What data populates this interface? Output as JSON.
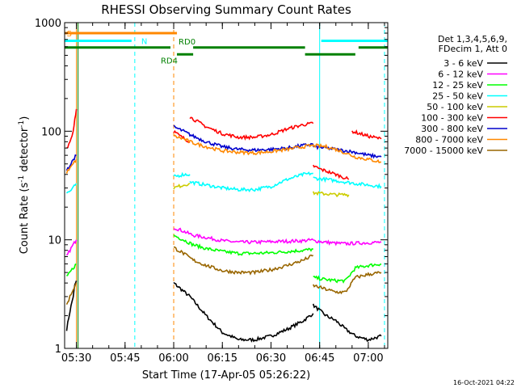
{
  "chart_data": {
    "type": "line",
    "title": "RHESSI Observing Summary Count Rates",
    "xlabel": "Start Time (17-Apr-05 05:26:22)",
    "ylabel_main": "Count Rate (s",
    "ylabel_sup1": "-1",
    "ylabel_mid": " detector",
    "ylabel_sup2": "-1",
    "ylabel_end": ")",
    "yscale": "log",
    "xlim": [
      "05:26:22",
      "07:06:00"
    ],
    "ylim": [
      1,
      1000
    ],
    "x_ticks": [
      "05:30",
      "05:45",
      "06:00",
      "06:15",
      "06:30",
      "06:45",
      "07:00"
    ],
    "y_ticks": [
      "1",
      "10",
      "100",
      "1000"
    ],
    "legend_header": [
      "Det 1,3,4,5,6,9,",
      "FDecim 1, Att 0"
    ],
    "series": [
      {
        "name": "3 - 6 keV",
        "color": "#000000",
        "segments": [
          {
            "x": [
              "05:27:00",
              "05:28:00",
              "05:29:00",
              "05:29:30",
              "05:30:00"
            ],
            "y": [
              1.5,
              2.2,
              3.0,
              3.8,
              4.2
            ]
          },
          {
            "x": [
              "06:00:00",
              "06:05:00",
              "06:10:00",
              "06:15:00",
              "06:20:00",
              "06:25:00",
              "06:30:00",
              "06:35:00",
              "06:40:00",
              "06:43:00"
            ],
            "y": [
              4.0,
              3.0,
              2.0,
              1.4,
              1.2,
              1.2,
              1.3,
              1.5,
              1.8,
              2.1
            ]
          },
          {
            "x": [
              "06:43:00",
              "06:47:00",
              "06:50:00",
              "06:53:00",
              "06:56:00",
              "07:00:00",
              "07:04:00"
            ],
            "y": [
              2.5,
              2.0,
              1.8,
              1.5,
              1.3,
              1.2,
              1.3
            ]
          }
        ]
      },
      {
        "name": "6 - 12 keV",
        "color": "#ff00ff",
        "segments": [
          {
            "x": [
              "05:27:00",
              "05:28:00",
              "05:29:00",
              "05:30:00"
            ],
            "y": [
              7.0,
              8.0,
              9.0,
              10.0
            ]
          },
          {
            "x": [
              "06:00:00",
              "06:03:00",
              "06:06:00",
              "06:10:00",
              "06:15:00",
              "06:20:00",
              "06:25:00",
              "06:30:00",
              "06:35:00",
              "06:40:00",
              "06:43:00"
            ],
            "y": [
              13.0,
              12.0,
              11.0,
              10.5,
              9.8,
              9.5,
              9.5,
              9.6,
              9.7,
              9.8,
              10.0
            ]
          },
          {
            "x": [
              "06:43:00",
              "06:47:00",
              "06:50:00",
              "06:53:00",
              "06:56:00",
              "07:00:00",
              "07:04:00"
            ],
            "y": [
              9.8,
              9.5,
              9.3,
              9.2,
              9.3,
              9.4,
              9.5
            ]
          }
        ]
      },
      {
        "name": "12 - 25 keV",
        "color": "#00ff00",
        "segments": [
          {
            "x": [
              "05:27:00",
              "05:28:00",
              "05:29:00",
              "05:30:00"
            ],
            "y": [
              4.5,
              5.0,
              5.5,
              6.0
            ]
          },
          {
            "x": [
              "06:00:00",
              "06:03:00",
              "06:06:00",
              "06:10:00",
              "06:15:00",
              "06:20:00",
              "06:25:00",
              "06:30:00",
              "06:35:00",
              "06:40:00",
              "06:43:00"
            ],
            "y": [
              11.0,
              10.0,
              9.0,
              8.3,
              7.8,
              7.5,
              7.5,
              7.6,
              7.8,
              8.0,
              8.2
            ]
          },
          {
            "x": [
              "06:43:00",
              "06:47:00",
              "06:50:00",
              "06:53:00",
              "06:56:00",
              "07:00:00",
              "07:04:00"
            ],
            "y": [
              4.5,
              4.3,
              4.2,
              4.2,
              5.5,
              5.8,
              6.0
            ]
          }
        ]
      },
      {
        "name": "25 - 50 keV",
        "color": "#00ffff",
        "segments": [
          {
            "x": [
              "05:27:00",
              "05:28:00",
              "05:29:00",
              "05:30:00"
            ],
            "y": [
              27.0,
              28.0,
              30.0,
              33.0
            ]
          },
          {
            "x": [
              "06:00:00",
              "06:03:00",
              "06:05:00"
            ],
            "y": [
              38.0,
              40.0,
              40.0
            ]
          },
          {
            "x": [
              "06:05:00",
              "06:10:00",
              "06:15:00",
              "06:20:00",
              "06:25:00",
              "06:30:00",
              "06:35:00",
              "06:40:00",
              "06:43:00"
            ],
            "y": [
              34.0,
              32.0,
              30.0,
              29.0,
              29.0,
              31.0,
              36.0,
              40.0,
              41.0
            ]
          },
          {
            "x": [
              "06:43:00",
              "06:47:00",
              "06:50:00",
              "06:53:00",
              "06:56:00",
              "07:00:00",
              "07:04:00"
            ],
            "y": [
              37.0,
              36.0,
              35.0,
              34.0,
              33.0,
              32.0,
              31.0
            ]
          }
        ]
      },
      {
        "name": "50 - 100 keV",
        "color": "#cccc00",
        "segments": [
          {
            "x": [
              "06:00:00",
              "06:03:00",
              "06:05:00"
            ],
            "y": [
              30.0,
              32.0,
              33.0
            ]
          },
          {
            "x": [
              "06:43:00",
              "06:47:00",
              "06:50:00",
              "06:54:00"
            ],
            "y": [
              27.0,
              26.5,
              26.0,
              26.0
            ]
          }
        ]
      },
      {
        "name": "100 - 300 keV",
        "color": "#ff0000",
        "segments": [
          {
            "x": [
              "05:27:00",
              "05:28:00",
              "05:29:00",
              "05:29:30",
              "05:30:00"
            ],
            "y": [
              70.0,
              80.0,
              100.0,
              130.0,
              160.0
            ]
          },
          {
            "x": [
              "06:00:00",
              "06:02:00",
              "06:05:00"
            ],
            "y": [
              100.0,
              90.0,
              80.0
            ]
          },
          {
            "x": [
              "06:05:00",
              "06:10:00",
              "06:15:00",
              "06:20:00",
              "06:25:00",
              "06:30:00",
              "06:35:00",
              "06:40:00",
              "06:43:00"
            ],
            "y": [
              135.0,
              110.0,
              95.0,
              88.0,
              88.0,
              93.0,
              105.0,
              115.0,
              118.0
            ]
          },
          {
            "x": [
              "06:43:00",
              "06:45:00",
              "06:50:00",
              "06:54:00"
            ],
            "y": [
              48.0,
              45.0,
              40.0,
              36.0
            ]
          },
          {
            "x": [
              "06:55:00",
              "07:00:00",
              "07:04:00"
            ],
            "y": [
              100.0,
              90.0,
              85.0
            ]
          }
        ]
      },
      {
        "name": "300 - 800 keV",
        "color": "#0000cc",
        "segments": [
          {
            "x": [
              "05:27:00",
              "05:28:00",
              "05:29:00",
              "05:30:00"
            ],
            "y": [
              45.0,
              48.0,
              55.0,
              60.0
            ]
          },
          {
            "x": [
              "06:00:00",
              "06:03:00",
              "06:06:00",
              "06:10:00",
              "06:15:00",
              "06:20:00",
              "06:25:00",
              "06:30:00",
              "06:35:00",
              "06:40:00",
              "06:43:00"
            ],
            "y": [
              110.0,
              100.0,
              90.0,
              80.0,
              72.0,
              68.0,
              67.0,
              68.0,
              70.0,
              74.0,
              76.0
            ]
          },
          {
            "x": [
              "06:43:00",
              "06:47:00",
              "06:50:00",
              "06:53:00",
              "06:56:00",
              "07:00:00",
              "07:04:00"
            ],
            "y": [
              72.0,
              70.0,
              68.0,
              66.0,
              64.0,
              60.0,
              58.0
            ]
          }
        ]
      },
      {
        "name": "800 - 7000 keV",
        "color": "#ff8800",
        "segments": [
          {
            "x": [
              "05:27:00",
              "05:28:00",
              "05:29:00",
              "05:30:00"
            ],
            "y": [
              42.0,
              45.0,
              50.0,
              55.0
            ]
          },
          {
            "x": [
              "06:00:00",
              "06:03:00",
              "06:06:00",
              "06:10:00",
              "06:15:00",
              "06:20:00",
              "06:25:00",
              "06:30:00",
              "06:35:00",
              "06:40:00",
              "06:43:00"
            ],
            "y": [
              90.0,
              85.0,
              78.0,
              72.0,
              66.0,
              64.0,
              63.0,
              65.0,
              68.0,
              72.0,
              74.0
            ]
          },
          {
            "x": [
              "06:43:00",
              "06:47:00",
              "06:50:00",
              "06:53:00",
              "06:56:00",
              "07:00:00",
              "07:04:00"
            ],
            "y": [
              74.0,
              72.0,
              68.0,
              63.0,
              58.0,
              55.0,
              52.0
            ]
          }
        ]
      },
      {
        "name": "7000 - 15000 keV",
        "color": "#996600",
        "segments": [
          {
            "x": [
              "05:27:00",
              "05:28:00",
              "05:29:00",
              "05:30:00"
            ],
            "y": [
              2.5,
              3.0,
              3.5,
              4.0
            ]
          },
          {
            "x": [
              "06:00:00",
              "06:03:00",
              "06:06:00",
              "06:10:00",
              "06:15:00",
              "06:20:00",
              "06:25:00",
              "06:30:00",
              "06:35:00",
              "06:40:00",
              "06:43:00"
            ],
            "y": [
              8.5,
              7.5,
              6.5,
              5.8,
              5.2,
              5.0,
              5.0,
              5.3,
              5.8,
              6.5,
              7.2
            ]
          },
          {
            "x": [
              "06:43:00",
              "06:47:00",
              "06:50:00",
              "06:53:00",
              "06:56:00",
              "07:00:00",
              "07:04:00"
            ],
            "y": [
              3.8,
              3.5,
              3.3,
              3.3,
              4.5,
              4.8,
              5.0
            ]
          }
        ]
      }
    ],
    "flags": [
      {
        "label": "S",
        "color": "#ff8800",
        "level": 800,
        "label_at": "05:27:00",
        "label_pos": "inline",
        "spans": [
          [
            "05:26:22",
            "06:01:00"
          ]
        ]
      },
      {
        "label": "N",
        "color": "#00ffff",
        "level": 680,
        "label_at": "05:50:00",
        "label_pos": "inline",
        "spans": [
          [
            "05:26:22",
            "05:47:00"
          ],
          [
            "06:45:30",
            "07:06:00"
          ]
        ]
      },
      {
        "label": "RD0",
        "color": "#008000",
        "level": 590,
        "label_at": "06:01:30",
        "label_pos": "above",
        "spans": [
          [
            "05:26:22",
            "05:59:00"
          ],
          [
            "06:06:00",
            "06:40:30"
          ],
          [
            "06:57:00",
            "07:06:00"
          ]
        ]
      },
      {
        "label": "RD4",
        "color": "#008000",
        "level": 510,
        "label_at": "05:56:00",
        "label_pos": "below",
        "spans": [
          [
            "06:01:00",
            "06:06:00"
          ],
          [
            "06:40:30",
            "06:56:00"
          ]
        ]
      }
    ],
    "vlines": [
      {
        "t": "05:30:00",
        "color": "#ff8800",
        "style": "solid"
      },
      {
        "t": "05:30:30",
        "color": "#008000",
        "style": "solid"
      },
      {
        "t": "05:48:00",
        "color": "#00ffff",
        "style": "dashed"
      },
      {
        "t": "06:00:00",
        "color": "#ff8800",
        "style": "dashed"
      },
      {
        "t": "06:45:00",
        "color": "#00ffff",
        "style": "solid"
      },
      {
        "t": "07:05:00",
        "color": "#00ffff",
        "style": "dashed"
      }
    ],
    "footer_timestamp": "16-Oct-2021 04:22"
  }
}
